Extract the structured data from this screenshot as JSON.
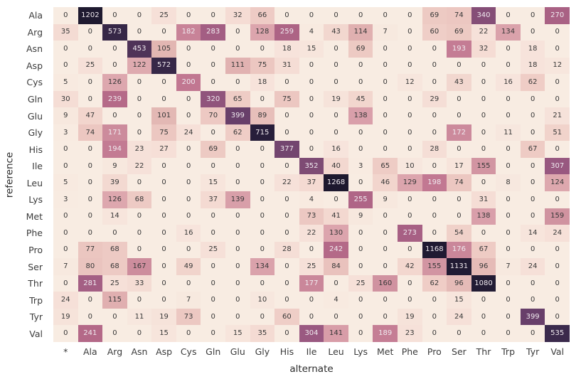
{
  "figure": {
    "xlabel": "alternate",
    "ylabel": "reference"
  },
  "chart_data": {
    "type": "heatmap",
    "title": "",
    "xlabel": "alternate",
    "ylabel": "reference",
    "legend": "none",
    "grid": false,
    "columns": [
      "*",
      "Ala",
      "Arg",
      "Asn",
      "Asp",
      "Cys",
      "Gln",
      "Glu",
      "Gly",
      "His",
      "Ile",
      "Leu",
      "Lys",
      "Met",
      "Phe",
      "Pro",
      "Ser",
      "Thr",
      "Trp",
      "Tyr",
      "Val"
    ],
    "rows": [
      "Ala",
      "Arg",
      "Asn",
      "Asp",
      "Cys",
      "Gln",
      "Glu",
      "Gly",
      "His",
      "Ile",
      "Leu",
      "Lys",
      "Met",
      "Phe",
      "Pro",
      "Ser",
      "Thr",
      "Trp",
      "Tyr",
      "Val"
    ],
    "values": [
      [
        0,
        1202,
        0,
        0,
        25,
        0,
        0,
        32,
        66,
        0,
        0,
        0,
        0,
        0,
        0,
        69,
        74,
        340,
        0,
        0,
        270
      ],
      [
        35,
        0,
        573,
        0,
        0,
        182,
        283,
        0,
        128,
        259,
        4,
        43,
        114,
        7,
        0,
        60,
        69,
        22,
        134,
        0,
        0
      ],
      [
        0,
        0,
        0,
        453,
        105,
        0,
        0,
        0,
        0,
        18,
        15,
        0,
        69,
        0,
        0,
        0,
        193,
        32,
        0,
        18,
        0
      ],
      [
        0,
        25,
        0,
        122,
        572,
        0,
        0,
        111,
        75,
        31,
        0,
        0,
        0,
        0,
        0,
        0,
        0,
        0,
        0,
        18,
        12
      ],
      [
        5,
        0,
        126,
        0,
        0,
        200,
        0,
        0,
        18,
        0,
        0,
        0,
        0,
        0,
        12,
        0,
        43,
        0,
        16,
        62,
        0
      ],
      [
        30,
        0,
        239,
        0,
        0,
        0,
        320,
        65,
        0,
        75,
        0,
        19,
        45,
        0,
        0,
        29,
        0,
        0,
        0,
        0,
        0
      ],
      [
        9,
        47,
        0,
        0,
        101,
        0,
        70,
        399,
        89,
        0,
        0,
        0,
        138,
        0,
        0,
        0,
        0,
        0,
        0,
        0,
        21
      ],
      [
        3,
        74,
        171,
        0,
        75,
        24,
        0,
        62,
        715,
        0,
        0,
        0,
        0,
        0,
        0,
        0,
        172,
        0,
        11,
        0,
        51
      ],
      [
        0,
        0,
        194,
        23,
        27,
        0,
        69,
        0,
        0,
        377,
        0,
        16,
        0,
        0,
        0,
        28,
        0,
        0,
        0,
        67,
        0
      ],
      [
        0,
        0,
        9,
        22,
        0,
        0,
        0,
        0,
        0,
        0,
        352,
        40,
        3,
        65,
        10,
        0,
        17,
        155,
        0,
        0,
        307
      ],
      [
        5,
        0,
        39,
        0,
        0,
        0,
        15,
        0,
        0,
        22,
        37,
        1268,
        0,
        46,
        129,
        198,
        74,
        0,
        8,
        0,
        124
      ],
      [
        3,
        0,
        126,
        68,
        0,
        0,
        37,
        139,
        0,
        0,
        4,
        0,
        255,
        9,
        0,
        0,
        0,
        31,
        0,
        0,
        0
      ],
      [
        0,
        0,
        14,
        0,
        0,
        0,
        0,
        0,
        0,
        0,
        73,
        41,
        9,
        0,
        0,
        0,
        0,
        138,
        0,
        0,
        159
      ],
      [
        0,
        0,
        0,
        0,
        0,
        16,
        0,
        0,
        0,
        0,
        22,
        130,
        0,
        0,
        273,
        0,
        54,
        0,
        0,
        14,
        24
      ],
      [
        0,
        77,
        68,
        0,
        0,
        0,
        25,
        0,
        0,
        28,
        0,
        242,
        0,
        0,
        0,
        1168,
        176,
        67,
        0,
        0,
        0
      ],
      [
        7,
        80,
        68,
        167,
        0,
        49,
        0,
        0,
        134,
        0,
        25,
        84,
        0,
        0,
        42,
        155,
        1131,
        96,
        7,
        24,
        0
      ],
      [
        0,
        281,
        25,
        33,
        0,
        0,
        0,
        0,
        0,
        0,
        177,
        0,
        25,
        160,
        0,
        62,
        96,
        1080,
        0,
        0,
        0
      ],
      [
        24,
        0,
        115,
        0,
        0,
        7,
        0,
        0,
        10,
        0,
        0,
        4,
        0,
        0,
        0,
        0,
        15,
        0,
        0,
        0,
        0
      ],
      [
        19,
        0,
        0,
        11,
        19,
        73,
        0,
        0,
        0,
        60,
        0,
        0,
        0,
        0,
        19,
        0,
        24,
        0,
        0,
        399,
        0
      ],
      [
        0,
        241,
        0,
        0,
        15,
        0,
        0,
        15,
        35,
        0,
        304,
        141,
        0,
        189,
        23,
        0,
        0,
        0,
        0,
        0,
        535
      ]
    ],
    "vmin": 0,
    "vmax": 1268,
    "colormap_stops": [
      [
        0,
        "#f8ece2"
      ],
      [
        25,
        "#f6e0d8"
      ],
      [
        50,
        "#f1d3cb"
      ],
      [
        75,
        "#ecc7c1"
      ],
      [
        105,
        "#e2b6b2"
      ],
      [
        130,
        "#dca4ad"
      ],
      [
        160,
        "#d092a0"
      ],
      [
        200,
        "#c17791"
      ],
      [
        250,
        "#b16686"
      ],
      [
        300,
        "#9c5a82"
      ],
      [
        350,
        "#7f4b74"
      ],
      [
        400,
        "#683f6a"
      ],
      [
        460,
        "#4c3156"
      ],
      [
        540,
        "#3a2a4b"
      ],
      [
        600,
        "#322544"
      ],
      [
        720,
        "#271e3a"
      ],
      [
        1100,
        "#221c34"
      ],
      [
        1268,
        "#1d182e"
      ]
    ],
    "annotation_white_text_min": 170,
    "annot_color_dark": "#383838",
    "annot_color_light": "#f0eaef",
    "tick_label_color": "#3b3b3b",
    "axis_label_color": "#2b2b2b",
    "background_color": "#ffffff"
  }
}
